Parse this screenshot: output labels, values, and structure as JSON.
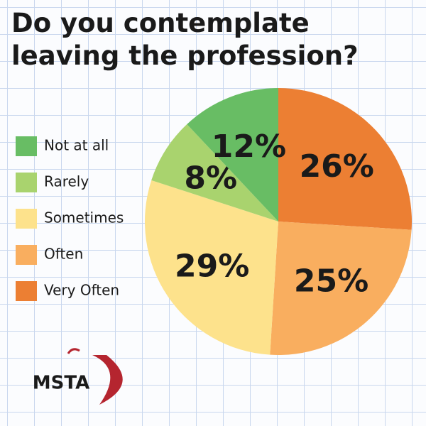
{
  "chart_data": {
    "type": "pie",
    "title": "Do you contemplate leaving the profession?",
    "categories": [
      "Not at all",
      "Rarely",
      "Sometimes",
      "Often",
      "Very Often"
    ],
    "values": [
      12,
      8,
      29,
      25,
      26
    ],
    "value_labels": [
      "12%",
      "8%",
      "29%",
      "25%",
      "26%"
    ],
    "colors": [
      "#68bd64",
      "#a9d36e",
      "#fde28c",
      "#f9ae5f",
      "#ec7f33"
    ],
    "legend": "left"
  },
  "logo": "MSTA"
}
